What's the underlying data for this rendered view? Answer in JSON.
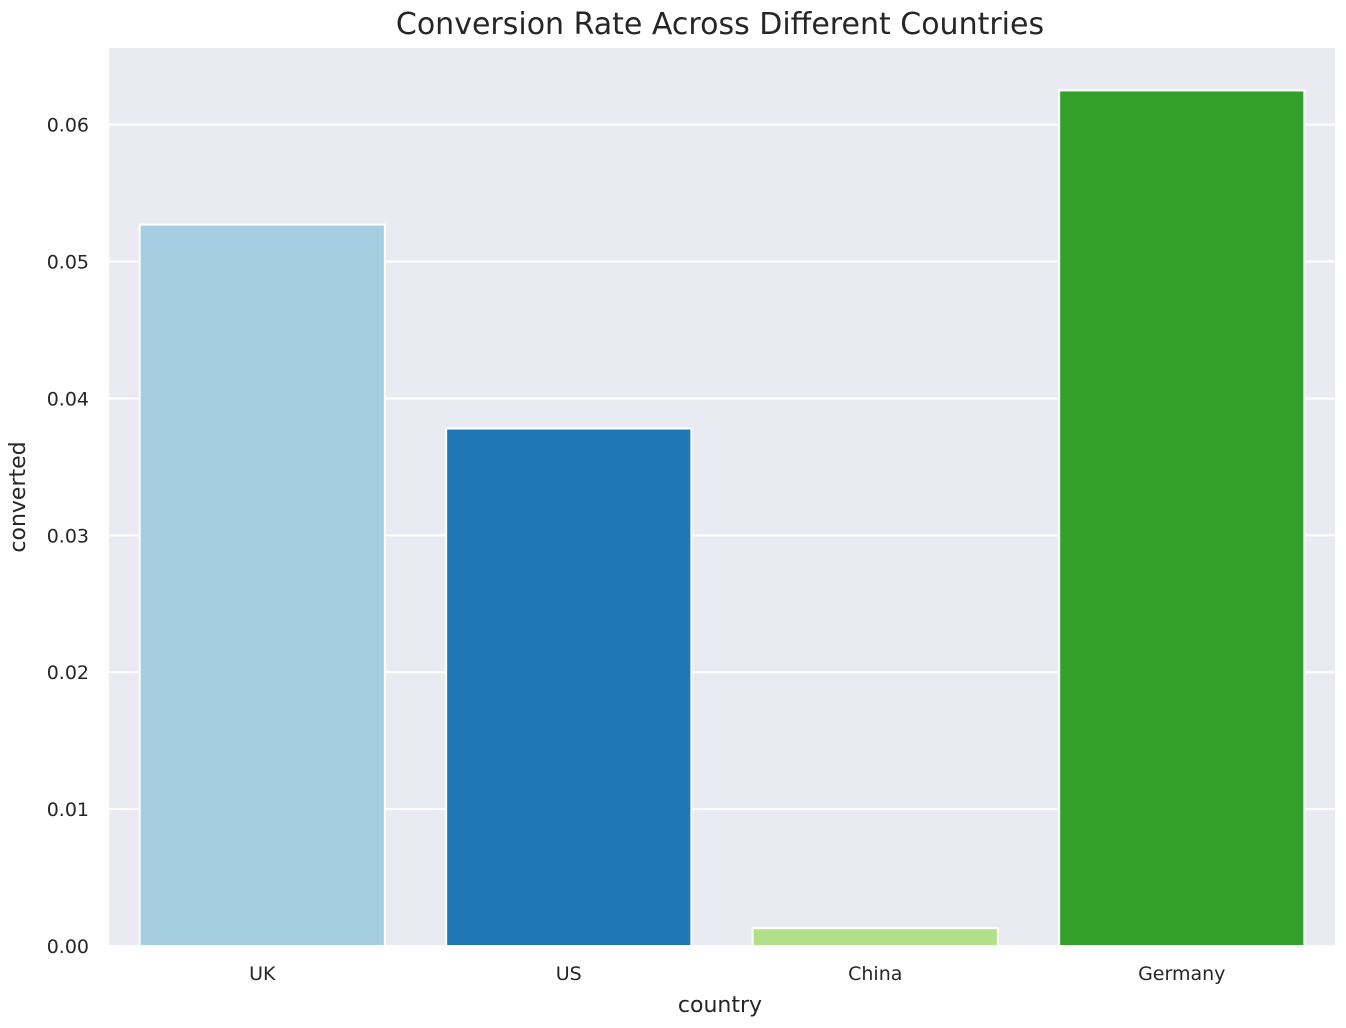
{
  "chart_data": {
    "type": "bar",
    "title": "Conversion Rate Across Different Countries",
    "xlabel": "country",
    "ylabel": "converted",
    "categories": [
      "UK",
      "US",
      "China",
      "Germany"
    ],
    "values": [
      0.0527,
      0.0378,
      0.0013,
      0.0625
    ],
    "colors": [
      "#a6cee3",
      "#1f78b4",
      "#b2df8a",
      "#33a02c"
    ],
    "yticks": [
      0.0,
      0.01,
      0.02,
      0.03,
      0.04,
      0.05,
      0.06
    ],
    "ytick_labels": [
      "0.00",
      "0.01",
      "0.02",
      "0.03",
      "0.04",
      "0.05",
      "0.06"
    ],
    "ylim": [
      0,
      0.0656
    ],
    "grid": true,
    "legend": "none",
    "background": "#eaeaf2"
  }
}
